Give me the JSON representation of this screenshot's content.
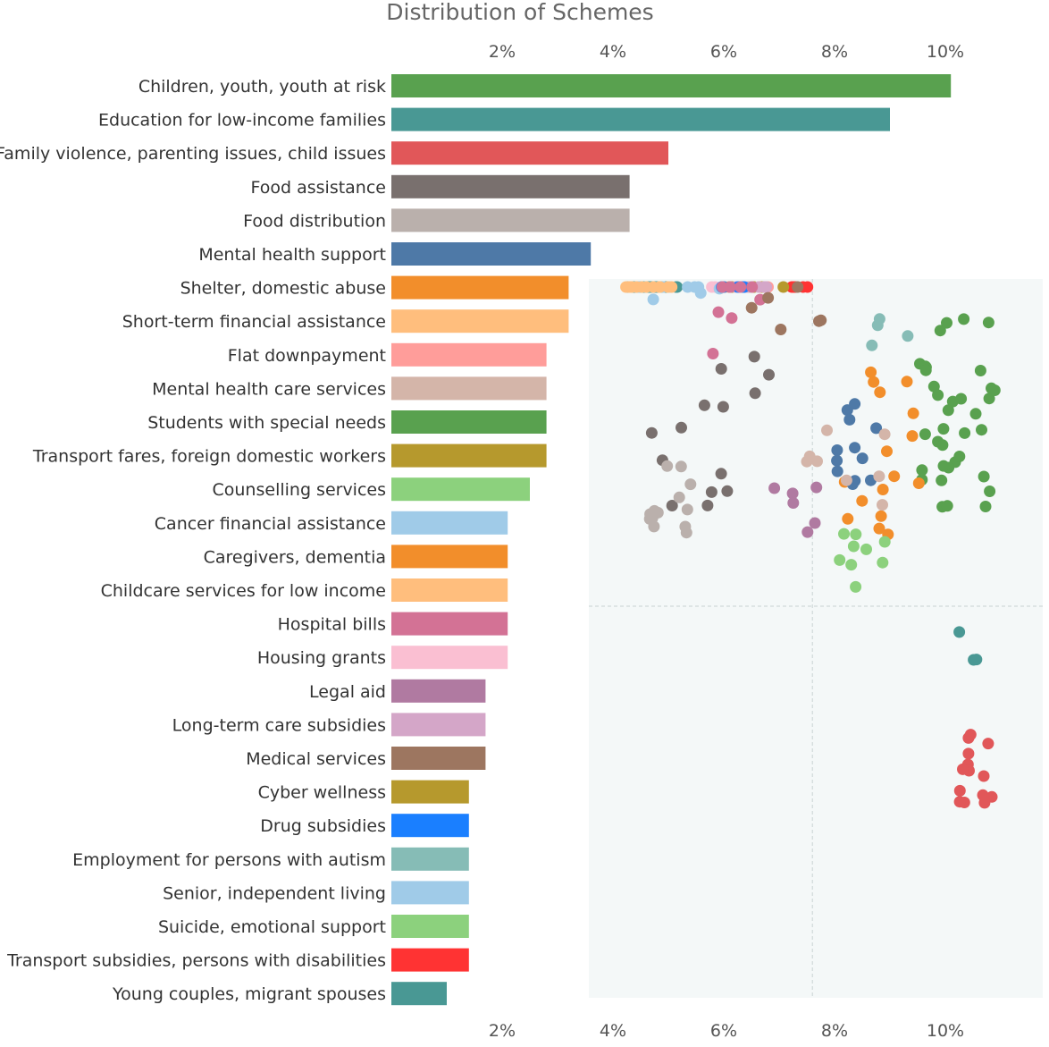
{
  "chart_data": {
    "type": "bar",
    "title": "Distribution of Schemes",
    "xlabel": "",
    "ylabel": "",
    "x_ticks": [
      "2%",
      "4%",
      "6%",
      "8%",
      "10%"
    ],
    "xlim": [
      0,
      11
    ],
    "categories": [
      "Children, youth, youth at risk",
      "Education for low-income families",
      "Family violence, parenting issues, child issues",
      "Food assistance",
      "Food distribution",
      "Mental health support",
      "Shelter, domestic abuse",
      "Short-term financial assistance",
      "Flat downpayment",
      "Mental health care services",
      "Students with special needs",
      "Transport fares, foreign domestic workers",
      "Counselling services",
      "Cancer financial assistance",
      "Caregivers, dementia",
      "Childcare services for low income",
      "Hospital bills",
      "Housing grants",
      "Legal aid",
      "Long-term care subsidies",
      "Medical services",
      "Cyber wellness",
      "Drug subsidies",
      "Employment for persons with autism",
      "Senior, independent living",
      "Suicide, emotional support",
      "Transport subsidies, persons with disabilities",
      "Young couples, migrant spouses"
    ],
    "values": [
      10.1,
      9.0,
      5.0,
      4.3,
      4.3,
      3.6,
      3.2,
      3.2,
      2.8,
      2.8,
      2.8,
      2.8,
      2.5,
      2.1,
      2.1,
      2.1,
      2.1,
      2.1,
      1.7,
      1.7,
      1.7,
      1.4,
      1.4,
      1.4,
      1.4,
      1.4,
      1.4,
      1.0
    ],
    "colors": [
      "#59a14f",
      "#499894",
      "#e15759",
      "#79706e",
      "#bab0ac",
      "#4e79a7",
      "#f28e2b",
      "#ffbe7d",
      "#ff9d9a",
      "#d4b5a9",
      "#59a14f",
      "#b6992d",
      "#8cd17d",
      "#a0cbe8",
      "#f28e2b",
      "#ffbe7d",
      "#d37295",
      "#fabfd2",
      "#b07aa1",
      "#d4a6c8",
      "#9d7660",
      "#b6992d",
      "#1a7fff",
      "#86bcb6",
      "#a0cbe8",
      "#8cd17d",
      "#ff3333",
      "#499894"
    ],
    "grid": false,
    "legend": "none",
    "inset": {
      "type": "scatter",
      "background": "#f4f8f8",
      "clusters": [
        {
          "color": "#499894",
          "x": 4.7,
          "y": 7.9,
          "n": 26,
          "sx": 0.5,
          "sy": 1.1
        },
        {
          "color": "#fabfd2",
          "x": 6.1,
          "y": 8.95,
          "n": 5,
          "sx": 0.35,
          "sy": 0.3
        },
        {
          "color": "#ff9d9a",
          "x": 6.5,
          "y": 8.6,
          "n": 9,
          "sx": 0.35,
          "sy": 0.6
        },
        {
          "color": "#ff3333",
          "x": 7.4,
          "y": 7.7,
          "n": 5,
          "sx": 0.3,
          "sy": 0.35
        },
        {
          "color": "#b6992d",
          "x": 6.6,
          "y": 7.0,
          "n": 7,
          "sx": 0.6,
          "sy": 0.5
        },
        {
          "color": "#d4a6c8",
          "x": 6.6,
          "y": 6.3,
          "n": 7,
          "sx": 0.4,
          "sy": 0.7
        },
        {
          "color": "#a0cbe8",
          "x": 5.6,
          "y": 5.9,
          "n": 12,
          "sx": 1.3,
          "sy": 1.0
        },
        {
          "color": "#ffbe7d",
          "x": 4.8,
          "y": 5.9,
          "n": 12,
          "sx": 0.6,
          "sy": 0.7
        },
        {
          "color": "#1a7fff",
          "x": 6.0,
          "y": 5.55,
          "n": 5,
          "sx": 0.45,
          "sy": 0.3
        },
        {
          "color": "#d37295",
          "x": 5.9,
          "y": 4.8,
          "n": 8,
          "sx": 0.8,
          "sy": 0.9
        },
        {
          "color": "#9d7660",
          "x": 7.4,
          "y": 4.9,
          "n": 6,
          "sx": 1.0,
          "sy": 0.5
        },
        {
          "color": "#86bcb6",
          "x": 9.0,
          "y": 4.3,
          "n": 4,
          "sx": 0.35,
          "sy": 0.6
        },
        {
          "color": "#59a14f",
          "x": 10.2,
          "y": 3.1,
          "n": 36,
          "sx": 0.75,
          "sy": 1.6
        },
        {
          "color": "#f28e2b",
          "x": 8.9,
          "y": 2.4,
          "n": 16,
          "sx": 0.8,
          "sy": 1.4
        },
        {
          "color": "#79706e",
          "x": 5.8,
          "y": 2.8,
          "n": 14,
          "sx": 1.1,
          "sy": 1.2
        },
        {
          "color": "#bab0ac",
          "x": 5.2,
          "y": 1.7,
          "n": 14,
          "sx": 0.55,
          "sy": 0.6
        },
        {
          "color": "#4e79a7",
          "x": 8.4,
          "y": 2.5,
          "n": 12,
          "sx": 0.45,
          "sy": 1.0
        },
        {
          "color": "#d4b5a9",
          "x": 8.4,
          "y": 2.4,
          "n": 8,
          "sx": 0.9,
          "sy": 0.9
        },
        {
          "color": "#b07aa1",
          "x": 7.3,
          "y": 1.6,
          "n": 6,
          "sx": 0.4,
          "sy": 0.5
        },
        {
          "color": "#8cd17d",
          "x": 8.5,
          "y": 0.8,
          "n": 9,
          "sx": 0.5,
          "sy": 0.6
        },
        {
          "color": "#499894",
          "x": 10.5,
          "y": -0.7,
          "n": 3,
          "sx": 0.25,
          "sy": 0.3
        },
        {
          "color": "#e15759",
          "x": 10.6,
          "y": -2.6,
          "n": 14,
          "sx": 0.35,
          "sy": 0.55
        }
      ]
    }
  }
}
